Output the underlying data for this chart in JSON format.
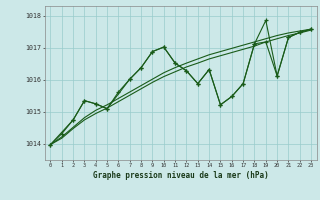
{
  "title": "Graphe pression niveau de la mer (hPa)",
  "xlabel_hours": [
    0,
    1,
    2,
    3,
    4,
    5,
    6,
    7,
    8,
    9,
    10,
    11,
    12,
    13,
    14,
    15,
    16,
    17,
    18,
    19,
    20,
    21,
    22,
    23
  ],
  "ylim": [
    1013.5,
    1018.3
  ],
  "yticks": [
    1014,
    1015,
    1016,
    1017,
    1018
  ],
  "xlim": [
    -0.5,
    23.5
  ],
  "bg_color": "#cce8e8",
  "grid_color": "#99cccc",
  "line_color": "#1a5c1a",
  "trend1_x": [
    0,
    1,
    2,
    3,
    4,
    5,
    6,
    7,
    8,
    9,
    10,
    11,
    12,
    13,
    14,
    15,
    16,
    17,
    18,
    19,
    20,
    21,
    22,
    23
  ],
  "trend1_y": [
    1013.98,
    1014.18,
    1014.48,
    1014.75,
    1014.95,
    1015.12,
    1015.32,
    1015.52,
    1015.72,
    1015.92,
    1016.1,
    1016.25,
    1016.4,
    1016.52,
    1016.65,
    1016.75,
    1016.85,
    1016.95,
    1017.05,
    1017.18,
    1017.28,
    1017.38,
    1017.46,
    1017.55
  ],
  "trend2_x": [
    0,
    1,
    2,
    3,
    4,
    5,
    6,
    7,
    8,
    9,
    10,
    11,
    12,
    13,
    14,
    15,
    16,
    17,
    18,
    19,
    20,
    21,
    22,
    23
  ],
  "trend2_y": [
    1013.98,
    1014.22,
    1014.52,
    1014.82,
    1015.05,
    1015.22,
    1015.42,
    1015.62,
    1015.82,
    1016.02,
    1016.22,
    1016.38,
    1016.52,
    1016.65,
    1016.78,
    1016.88,
    1016.98,
    1017.08,
    1017.18,
    1017.28,
    1017.38,
    1017.46,
    1017.52,
    1017.58
  ],
  "obs1_x": [
    0,
    2,
    3,
    4,
    5,
    7,
    8,
    9,
    10,
    11,
    12,
    13,
    14,
    15,
    16,
    17,
    18,
    19,
    20,
    21,
    22,
    23
  ],
  "obs1_y": [
    1013.98,
    1014.75,
    1015.35,
    1015.25,
    1015.1,
    1016.02,
    1016.38,
    1016.88,
    1017.02,
    1016.52,
    1016.28,
    1015.88,
    1016.32,
    1015.22,
    1015.48,
    1015.88,
    1017.12,
    1017.85,
    1016.12,
    1017.32,
    1017.48,
    1017.58
  ],
  "obs2_x": [
    0,
    1,
    2,
    3,
    4,
    5,
    6,
    7,
    8,
    9,
    10,
    11,
    12,
    13,
    14,
    15,
    16,
    17,
    18,
    19,
    20,
    21,
    22,
    23
  ],
  "obs2_y": [
    1013.98,
    1014.32,
    1014.75,
    1015.35,
    1015.25,
    1015.1,
    1015.62,
    1016.02,
    1016.38,
    1016.88,
    1017.02,
    1016.52,
    1016.28,
    1015.88,
    1016.32,
    1015.22,
    1015.48,
    1015.88,
    1017.12,
    1017.18,
    1016.12,
    1017.32,
    1017.48,
    1017.58
  ]
}
